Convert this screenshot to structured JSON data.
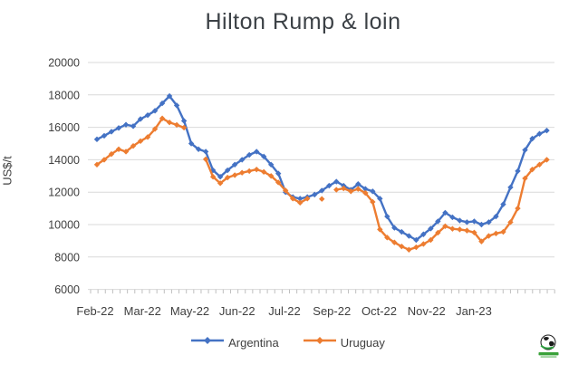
{
  "title": "Hilton Rump & loin",
  "footer": {
    "logo_icon": "globe-logo"
  },
  "chart_data": {
    "type": "line",
    "title": "Hilton Rump & loin",
    "xlabel": "",
    "ylabel": "US$/t",
    "ylim": [
      6000,
      20000
    ],
    "y_ticks": [
      20000,
      18000,
      16000,
      14000,
      12000,
      10000,
      8000,
      6000
    ],
    "x_labels": [
      "Feb-22",
      "Mar-22",
      "May-22",
      "Jun-22",
      "Jul-22",
      "Sep-22",
      "Oct-22",
      "Nov-22",
      "Jan-23"
    ],
    "grid": true,
    "legend_position": "bottom",
    "marker": "diamond",
    "series": [
      {
        "name": "Argentina",
        "color": "#4472C4",
        "values": [
          15260,
          15480,
          15730,
          15960,
          16160,
          16070,
          16510,
          16750,
          17020,
          17480,
          17930,
          17350,
          16400,
          15000,
          14650,
          14500,
          13350,
          12950,
          13350,
          13700,
          14000,
          14300,
          14500,
          14200,
          13700,
          13150,
          12000,
          11700,
          11600,
          11700,
          11850,
          12100,
          12400,
          12650,
          12400,
          12150,
          12500,
          12200,
          12050,
          11600,
          10500,
          9800,
          9550,
          9300,
          9050,
          9400,
          9750,
          10200,
          10730,
          10450,
          10250,
          10150,
          10200,
          10000,
          10150,
          10500,
          11250,
          12300,
          13300,
          14600,
          15300,
          15600,
          15800
        ]
      },
      {
        "name": "Uruguay",
        "color": "#ED7D31",
        "values": [
          13700,
          14000,
          14350,
          14650,
          14500,
          14850,
          15150,
          15400,
          15900,
          16550,
          16300,
          16150,
          15980,
          null,
          null,
          14030,
          12950,
          12550,
          12900,
          13050,
          13200,
          13300,
          13400,
          13250,
          13000,
          12600,
          12100,
          11600,
          11350,
          11600,
          null,
          11580,
          null,
          12150,
          12230,
          12050,
          12200,
          11950,
          11400,
          9700,
          9200,
          8900,
          8650,
          8450,
          8600,
          8800,
          9050,
          9500,
          9900,
          9740,
          9700,
          9630,
          9510,
          8960,
          9300,
          9450,
          9550,
          10150,
          11000,
          12850,
          13400,
          13700,
          14000
        ]
      }
    ]
  }
}
